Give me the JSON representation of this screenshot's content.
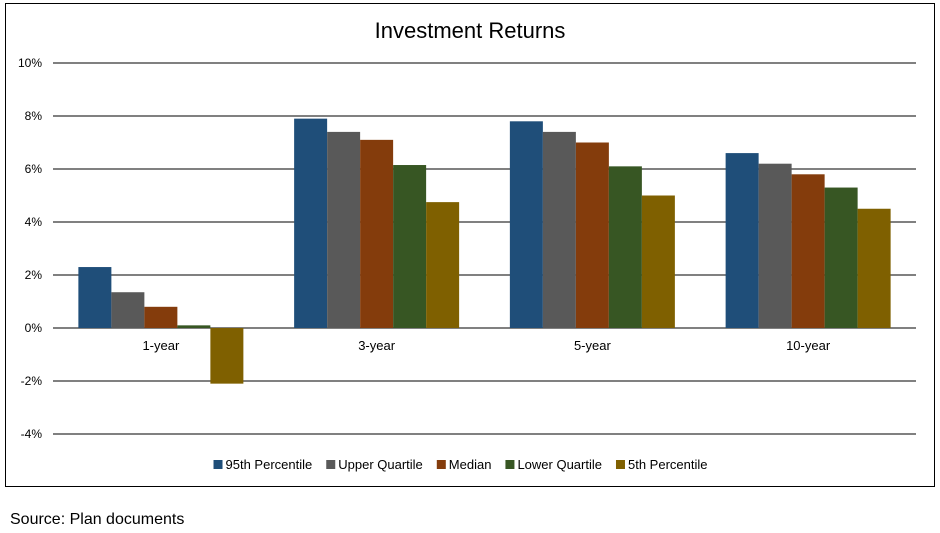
{
  "chart_data": {
    "type": "bar",
    "title": "Investment Returns",
    "xlabel": "",
    "ylabel": "",
    "categories": [
      "1-year",
      "3-year",
      "5-year",
      "10-year"
    ],
    "series": [
      {
        "name": "95th Percentile",
        "color": "#1F4E79",
        "values": [
          2.3,
          7.9,
          7.8,
          6.6
        ]
      },
      {
        "name": "Upper Quartile",
        "color": "#595959",
        "values": [
          1.35,
          7.4,
          7.4,
          6.2
        ]
      },
      {
        "name": "Median",
        "color": "#843C0C",
        "values": [
          0.8,
          7.1,
          7.0,
          5.8
        ]
      },
      {
        "name": "Lower Quartile",
        "color": "#375623",
        "values": [
          0.1,
          6.15,
          6.1,
          5.3
        ]
      },
      {
        "name": "5th Percentile",
        "color": "#7F6000",
        "values": [
          -2.1,
          4.75,
          5.0,
          4.5
        ]
      }
    ],
    "ylim": [
      -4,
      10
    ],
    "yticks": [
      10,
      8,
      6,
      4,
      2,
      0,
      -2,
      -4
    ],
    "ytick_labels": [
      "10%",
      "8%",
      "6%",
      "4%",
      "2%",
      "0%",
      "-2%",
      "-4%"
    ],
    "grid": true,
    "legend_position": "bottom"
  },
  "source_note": "Source: Plan documents"
}
